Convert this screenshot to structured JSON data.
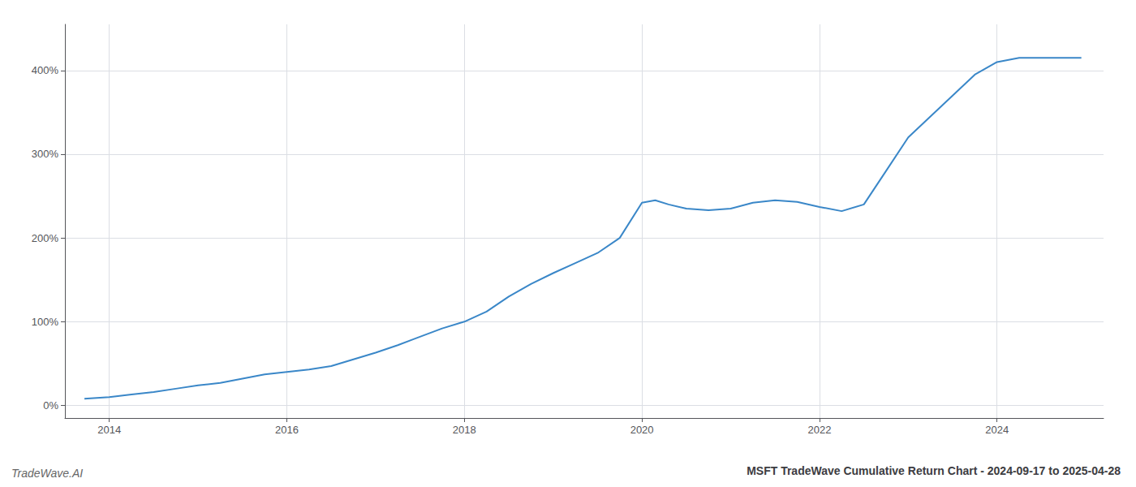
{
  "chart_data": {
    "type": "line",
    "title": "MSFT TradeWave Cumulative Return Chart - 2024-09-17 to 2025-04-28",
    "annotations": [
      "TradeWave.AI"
    ],
    "color": "#3a87c8",
    "x": [
      2013.72,
      2014.0,
      2014.25,
      2014.5,
      2014.75,
      2015.0,
      2015.25,
      2015.5,
      2015.75,
      2016.0,
      2016.25,
      2016.5,
      2016.75,
      2017.0,
      2017.25,
      2017.5,
      2017.75,
      2018.0,
      2018.25,
      2018.5,
      2018.75,
      2019.0,
      2019.25,
      2019.5,
      2019.75,
      2020.0,
      2020.15,
      2020.3,
      2020.5,
      2020.75,
      2021.0,
      2021.25,
      2021.5,
      2021.75,
      2022.0,
      2022.25,
      2022.5,
      2022.75,
      2023.0,
      2023.25,
      2023.5,
      2023.75,
      2024.0,
      2024.25,
      2024.5,
      2024.75,
      2024.95
    ],
    "values": [
      8,
      10,
      13,
      16,
      20,
      24,
      27,
      32,
      37,
      40,
      43,
      47,
      55,
      63,
      72,
      82,
      92,
      100,
      112,
      130,
      145,
      158,
      170,
      182,
      200,
      242,
      245,
      240,
      235,
      233,
      235,
      242,
      245,
      243,
      237,
      232,
      240,
      280,
      320,
      345,
      370,
      395,
      410,
      415,
      415,
      415,
      415
    ],
    "xlim": [
      2013.5,
      2025.2
    ],
    "xticks": [
      2014,
      2016,
      2018,
      2020,
      2022,
      2024
    ],
    "ylim": [
      -15,
      455
    ],
    "yticks": [
      {
        "value": 0,
        "label": "0%"
      },
      {
        "value": 100,
        "label": "100%"
      },
      {
        "value": 200,
        "label": "200%"
      },
      {
        "value": 300,
        "label": "300%"
      },
      {
        "value": 400,
        "label": "400%"
      }
    ],
    "grid": true
  }
}
